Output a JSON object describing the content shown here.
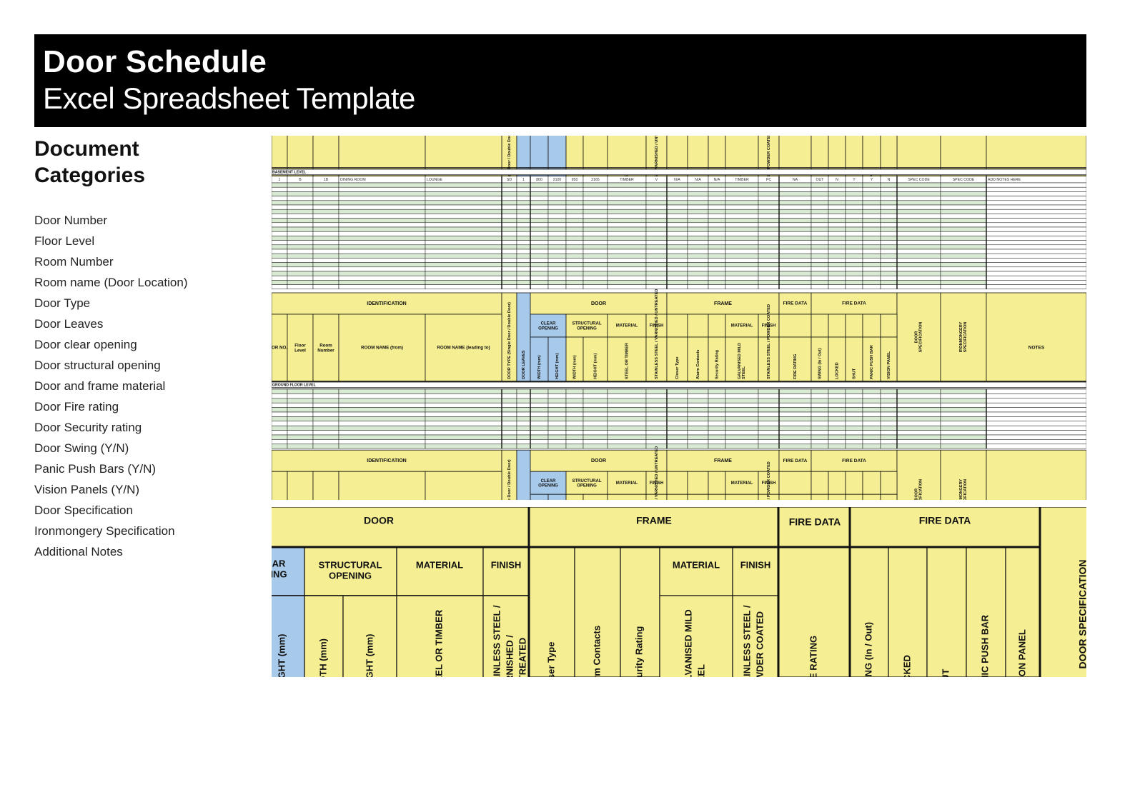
{
  "header": {
    "title": "Door Schedule",
    "subtitle": "Excel Spreadsheet Template"
  },
  "categories": {
    "heading_line1": "Document",
    "heading_line2": "Categories",
    "items": [
      "Door Number",
      "Floor Level",
      "Room Number",
      "Room name (Door Location)",
      "Door Type",
      "Door Leaves",
      "Door clear opening",
      "Door structural opening",
      "Door and frame material",
      "Door Fire rating",
      "Door Security rating",
      "Door Swing (Y/N)",
      "Panic Push Bars (Y/N)",
      "Vision Panels (Y/N)",
      "Door Specification",
      "Ironmongery Specification",
      "Additional Notes"
    ]
  },
  "spreadsheet": {
    "colors": {
      "header_yellow": "#f5ee92",
      "highlight_blue": "#a7c9ea",
      "row_green": "#d9ead3",
      "row_white": "#ffffff",
      "grid_line": "#111111"
    },
    "groups": {
      "identification": "IDENTIFICATION",
      "door": "DOOR",
      "frame": "FRAME",
      "fire_data_1": "FIRE DATA",
      "fire_data_2": "FIRE DATA"
    },
    "subgroups": {
      "clear_opening": "CLEAR OPENING",
      "structural_opening": "STRUCTURAL OPENING",
      "material": "MATERIAL",
      "finish": "FINISH"
    },
    "columns": {
      "door_no": "DOOR NO.",
      "floor_level": "Floor Level",
      "room_number": "Room Number",
      "room_from": "ROOM NAME (from)",
      "room_to": "ROOM NAME (leading to)",
      "door_type": "DOOR TYPE (Single Door / Double Door)",
      "door_leaves": "DOOR LEAVES",
      "width": "WIDTH (mm)",
      "height": "HEIGHT (mm)",
      "steel_timber": "STEEL OR TIMBER",
      "stainless_varnished": "STAINLESS STEEL / VARNISHED / UNTREATED",
      "closer_type": "Closer Type",
      "alarm_contacts": "Alarm Contacts",
      "security_rating": "Security Rating",
      "galvanised": "GALVANISED MILD STEEL",
      "stainless_powder": "STAINLESS STEEL / POWDER COATED",
      "fire_rating": "FIRE RATING",
      "swing": "SWING (In / Out)",
      "locked": "LOCKED",
      "shut": "SHUT",
      "panic_bar": "PANIC PUSH BAR",
      "vision_panel": "VISION PANEL",
      "door_spec": "DOOR SPECIFICATION",
      "iron_spec": "IRONMONGERY SPECIFICATION",
      "notes": "NOTES"
    },
    "sections": {
      "basement": "BASEMENT LEVEL",
      "ground": "GROUND FLOOR LEVEL"
    },
    "sample_row": [
      "1",
      "B",
      "1B",
      "DINING ROOM",
      "LOUNGE",
      "SD",
      "1",
      "800",
      "2100",
      "950",
      "2165",
      "TIMBER",
      "V",
      "N/A",
      "N/A",
      "N/A",
      "TIMBER",
      "PC",
      "NA",
      "OUT",
      "N",
      "Y",
      "Y",
      "N",
      "SPEC CODE",
      "SPEC CODE",
      "ADD NOTES HERE"
    ]
  }
}
